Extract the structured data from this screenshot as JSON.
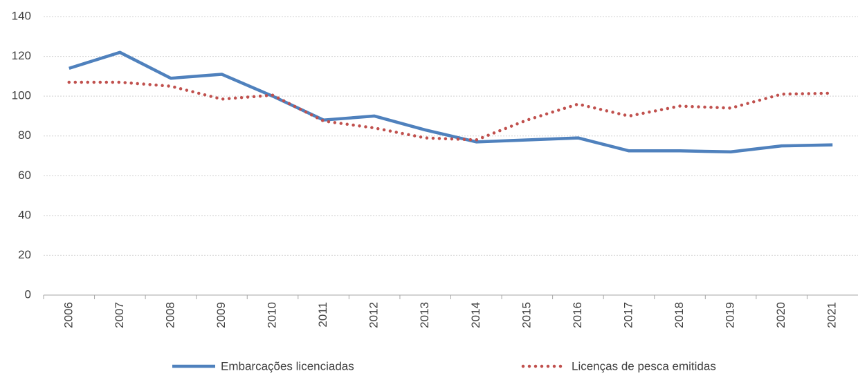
{
  "chart_data": {
    "type": "line",
    "categories": [
      "2006",
      "2007",
      "2008",
      "2009",
      "2010",
      "2011",
      "2012",
      "2013",
      "2014",
      "2015",
      "2016",
      "2017",
      "2018",
      "2019",
      "2020",
      "2021"
    ],
    "series": [
      {
        "name": "Embarcações licenciadas",
        "color": "#4f81bd",
        "style": "solid",
        "values": [
          114,
          122,
          109,
          111,
          100,
          88,
          90,
          83,
          77,
          78,
          79,
          72.5,
          72.5,
          72,
          75,
          75.5
        ]
      },
      {
        "name": "Licenças de pesca emitidas",
        "color": "#c0504d",
        "style": "dotted",
        "values": [
          107,
          107,
          105,
          98.5,
          100.5,
          87.5,
          84,
          79,
          78,
          88,
          96,
          90,
          95,
          94,
          101,
          101.5
        ]
      }
    ],
    "ylim": [
      0,
      140
    ],
    "yticks": [
      0,
      20,
      40,
      60,
      80,
      100,
      120,
      140
    ],
    "grid": true,
    "legend": "bottom"
  }
}
